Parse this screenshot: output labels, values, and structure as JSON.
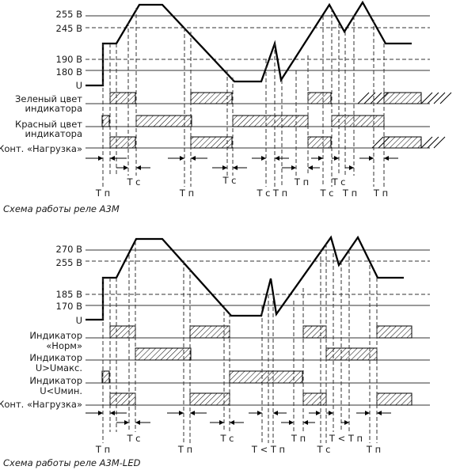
{
  "diagram_top": {
    "voltage_labels": [
      "255 В",
      "245 В",
      "190 В",
      "180 В"
    ],
    "u_label": "U",
    "rows": [
      {
        "lines": [
          "Зеленый цвет",
          "индикатора"
        ]
      },
      {
        "lines": [
          "Красный цвет",
          "индикатора"
        ]
      },
      {
        "lines": [
          "Конт. «Нагрузка»"
        ]
      }
    ],
    "times": [
      "Т п",
      "Т с",
      "Т п",
      "Т с",
      "Т с",
      "Т п",
      "Т п",
      "Т с",
      "Т с",
      "Т п",
      "Т п"
    ],
    "caption": "Схема работы реле А3М"
  },
  "diagram_bottom": {
    "voltage_labels": [
      "270 В",
      "255 В",
      "185 В",
      "170 В"
    ],
    "u_label": "U",
    "rows": [
      {
        "lines": [
          "Индикатор",
          "«Норм»"
        ]
      },
      {
        "lines": [
          "Индикатор",
          "U>Uмакс."
        ]
      },
      {
        "lines": [
          "Индикатор",
          "U<Uмин."
        ]
      },
      {
        "lines": [
          "Конт. «Нагрузка»"
        ]
      }
    ],
    "times": [
      "Т п",
      "Т с",
      "Т п",
      "Т с",
      "Т < Т п",
      "Т п",
      "Т с",
      "Т < Т п"
    ],
    "caption": "Схема работы реле А3М-LED"
  }
}
